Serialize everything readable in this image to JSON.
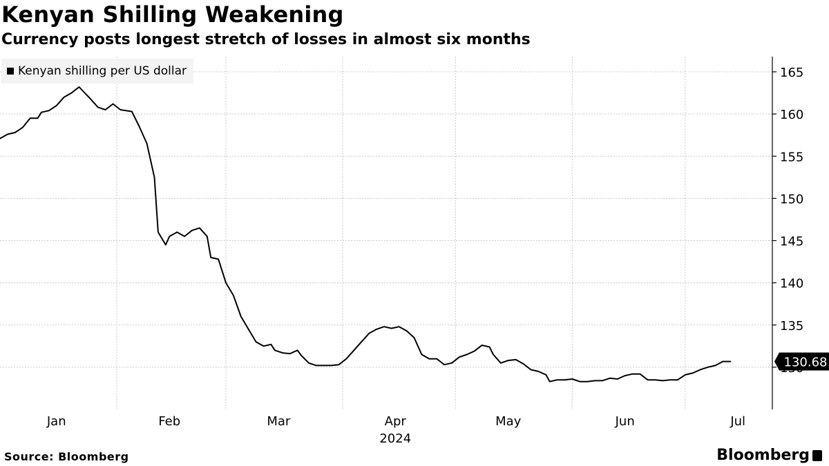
{
  "header": {
    "title": "Kenyan Shilling Weakening",
    "subtitle": "Currency posts longest stretch of losses in almost six months"
  },
  "legend": {
    "label": "Kenyan shilling per US dollar"
  },
  "footer": {
    "source": "Source: Bloomberg",
    "brand": "Bloomberg"
  },
  "chart_data": {
    "type": "line",
    "title": "Kenyan Shilling Weakening",
    "subtitle": "Currency posts longest stretch of losses in almost six months",
    "xlabel": "2024",
    "ylabel": "",
    "ylim": [
      125,
      166.8
    ],
    "yticks": [
      165,
      160,
      155,
      150,
      145,
      140,
      135,
      130
    ],
    "xlim": [
      0,
      195
    ],
    "xticks": [
      {
        "label": "Jan",
        "day": 15
      },
      {
        "label": "Feb",
        "day": 45
      },
      {
        "label": "Mar",
        "day": 74
      },
      {
        "label": "Apr",
        "day": 105
      },
      {
        "label": "May",
        "day": 135
      },
      {
        "label": "Jun",
        "day": 166
      },
      {
        "label": "Jul",
        "day": 196
      }
    ],
    "month_boundaries": [
      0,
      31,
      60,
      91,
      121,
      152,
      182
    ],
    "grid": true,
    "last_value_label": "130.68",
    "series": [
      {
        "name": "Kenyan shilling per US dollar",
        "x": [
          0,
          2,
          4,
          6,
          8,
          10,
          11,
          13,
          15,
          17,
          19,
          21,
          24,
          26,
          28,
          30,
          32,
          35,
          37,
          39,
          41,
          42,
          44,
          45,
          47,
          49,
          51,
          53,
          55,
          56,
          58,
          60,
          62,
          64,
          66,
          68,
          70,
          72,
          73,
          75,
          77,
          79,
          80,
          82,
          84,
          86,
          88,
          90,
          92,
          94,
          96,
          98,
          100,
          102,
          104,
          106,
          108,
          110,
          112,
          114,
          116,
          118,
          120,
          122,
          124,
          126,
          128,
          130,
          131,
          133,
          135,
          137,
          139,
          141,
          143,
          145,
          146,
          148,
          150,
          152,
          154,
          156,
          158,
          160,
          162,
          164,
          166,
          168,
          170,
          172,
          174,
          176,
          178,
          180,
          182,
          184,
          186,
          188,
          190,
          192,
          194
        ],
        "y": [
          157.1,
          157.6,
          157.8,
          158.4,
          159.5,
          159.5,
          160.2,
          160.4,
          161.0,
          162.0,
          162.5,
          163.2,
          161.8,
          160.8,
          160.5,
          161.2,
          160.5,
          160.3,
          158.5,
          156.5,
          152.5,
          146.0,
          144.5,
          145.5,
          146.0,
          145.5,
          146.2,
          146.5,
          145.5,
          143.0,
          142.8,
          140.0,
          138.5,
          136.0,
          134.5,
          133.0,
          132.5,
          132.7,
          132.0,
          131.7,
          131.6,
          132.0,
          131.4,
          130.5,
          130.2,
          130.2,
          130.2,
          130.3,
          131.0,
          132.0,
          133.0,
          134.0,
          134.5,
          134.8,
          134.6,
          134.8,
          134.3,
          133.5,
          131.5,
          131.0,
          131.0,
          130.3,
          130.5,
          131.2,
          131.5,
          131.9,
          132.6,
          132.4,
          131.5,
          130.5,
          130.8,
          130.9,
          130.4,
          129.7,
          129.5,
          129.1,
          128.3,
          128.5,
          128.5,
          128.6,
          128.3,
          128.3,
          128.4,
          128.4,
          128.7,
          128.6,
          129.0,
          129.2,
          129.2,
          128.5,
          128.5,
          128.4,
          128.5,
          128.5,
          129.1,
          129.3,
          129.7,
          130.0,
          130.2,
          130.68,
          130.68
        ]
      }
    ]
  }
}
